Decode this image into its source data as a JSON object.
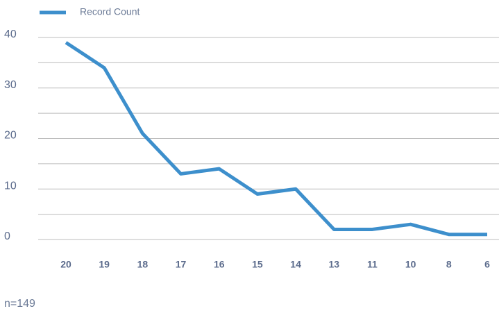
{
  "chart_data": {
    "type": "line",
    "categories": [
      "20",
      "19",
      "18",
      "17",
      "16",
      "15",
      "14",
      "13",
      "11",
      "10",
      "8",
      "6"
    ],
    "series": [
      {
        "name": "Record Count",
        "color": "#3d8fcc",
        "values": [
          39,
          34,
          21,
          13,
          14,
          9,
          10,
          2,
          2,
          3,
          1,
          1
        ]
      }
    ],
    "ylim": [
      0,
      40
    ],
    "yticks": [
      0,
      10,
      20,
      30,
      40
    ],
    "minor_yticks": [
      5,
      15,
      25,
      35
    ],
    "grid": true,
    "legend": "top-left",
    "footnote": "n=149"
  }
}
